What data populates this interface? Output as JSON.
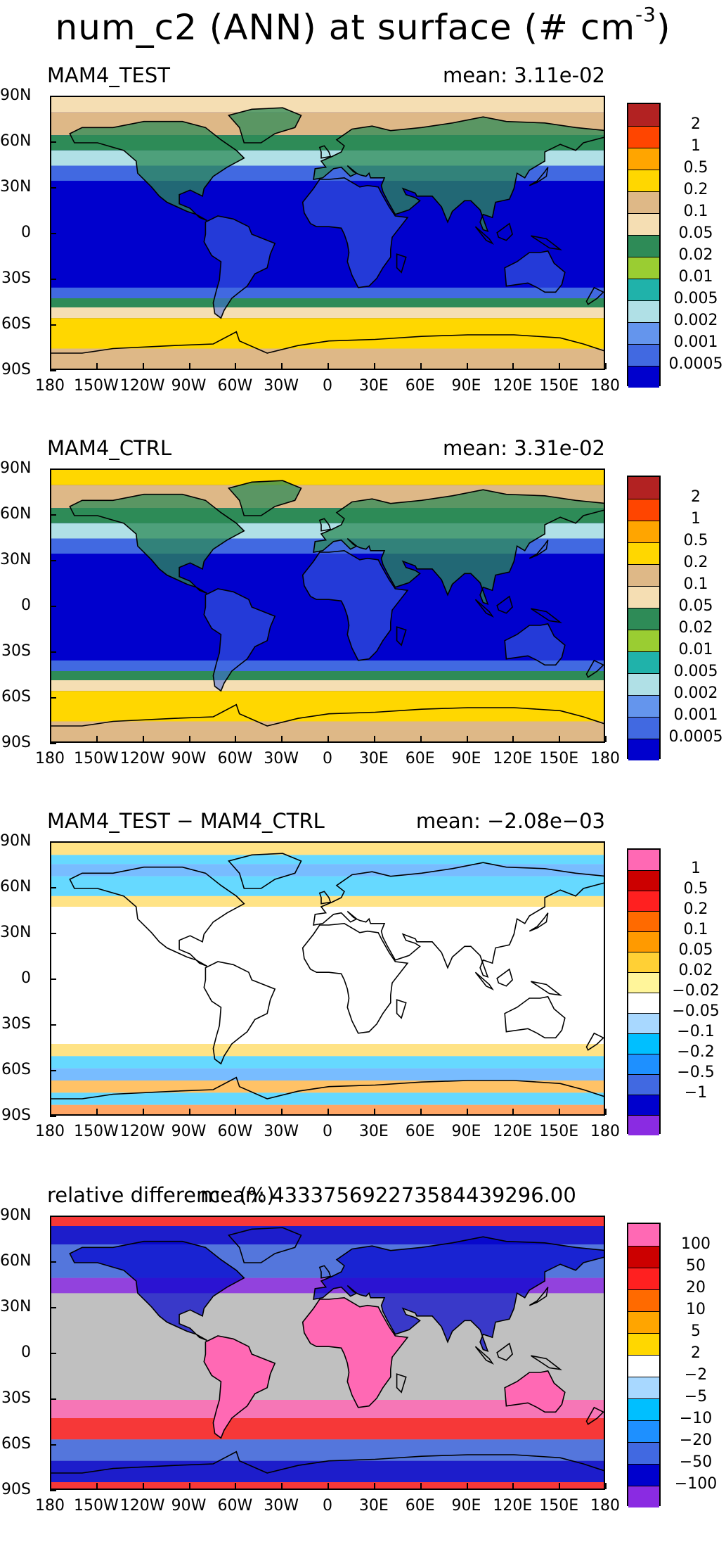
{
  "figure": {
    "title_main": "num_c2 (ANN) at surface (# cm",
    "title_sup": "-3",
    "title_close": ")"
  },
  "axes": {
    "lat_labels": [
      "90N",
      "60N",
      "30N",
      "0",
      "30S",
      "60S",
      "90S"
    ],
    "lon_labels": [
      "180",
      "150W",
      "120W",
      "90W",
      "60W",
      "30W",
      "0",
      "30E",
      "60E",
      "90E",
      "120E",
      "150E",
      "180"
    ]
  },
  "panels": [
    {
      "label": "MAM4_TEST",
      "mean": "mean: 3.11e-02",
      "colorbar": {
        "colors": [
          "#b22222",
          "#ff4500",
          "#ffa500",
          "#ffd700",
          "#deb887",
          "#f5deb3",
          "#2e8b57",
          "#9acd32",
          "#20b2aa",
          "#b0e0e6",
          "#6495ed",
          "#4169e1",
          "#0000cd"
        ],
        "labels": [
          "2",
          "1",
          "0.5",
          "0.2",
          "0.1",
          "0.05",
          "0.02",
          "0.01",
          "0.005",
          "0.002",
          "0.001",
          "0.0005"
        ]
      }
    },
    {
      "label": "MAM4_CTRL",
      "mean": "mean: 3.31e-02",
      "colorbar": {
        "colors": [
          "#b22222",
          "#ff4500",
          "#ffa500",
          "#ffd700",
          "#deb887",
          "#f5deb3",
          "#2e8b57",
          "#9acd32",
          "#20b2aa",
          "#b0e0e6",
          "#6495ed",
          "#4169e1",
          "#0000cd"
        ],
        "labels": [
          "2",
          "1",
          "0.5",
          "0.2",
          "0.1",
          "0.05",
          "0.02",
          "0.01",
          "0.005",
          "0.002",
          "0.001",
          "0.0005"
        ]
      }
    },
    {
      "label": "MAM4_TEST − MAM4_CTRL",
      "mean": "mean: −2.08e−03",
      "colorbar": {
        "colors": [
          "#ff69b4",
          "#cc0000",
          "#ff2020",
          "#ff6a00",
          "#ff9a00",
          "#ffd035",
          "#fff59a",
          "#ffffff",
          "#a8d8ff",
          "#00bfff",
          "#1e90ff",
          "#4169e1",
          "#0000cd",
          "#8a2be2"
        ],
        "labels": [
          "1",
          "0.5",
          "0.2",
          "0.1",
          "0.05",
          "0.02",
          "−0.02",
          "−0.05",
          "−0.1",
          "−0.2",
          "−0.5",
          "−1"
        ]
      }
    },
    {
      "label": "relative difference (%)",
      "mean": "mean: 43337569227358443929​6.00",
      "colorbar": {
        "colors": [
          "#ff69b4",
          "#cc0000",
          "#ff2020",
          "#ff6a00",
          "#ffa500",
          "#ffd700",
          "#ffffff",
          "#a8d8ff",
          "#00bfff",
          "#1e90ff",
          "#4169e1",
          "#0000cd",
          "#8a2be2"
        ],
        "labels": [
          "100",
          "50",
          "20",
          "10",
          "5",
          "2",
          "−2",
          "−5",
          "−10",
          "−20",
          "−50",
          "−100"
        ]
      }
    }
  ]
}
